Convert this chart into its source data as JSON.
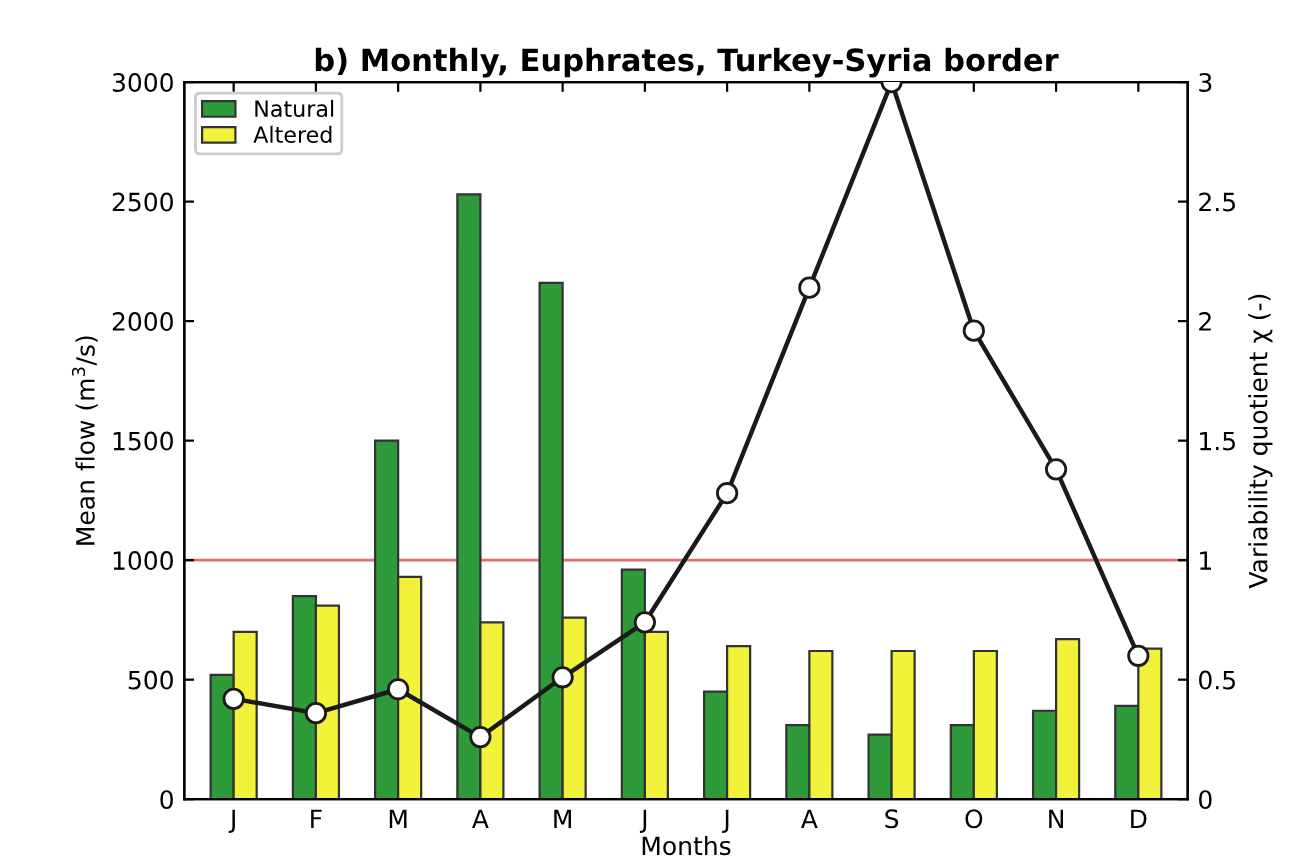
{
  "chart_data": {
    "type": "bar",
    "title": "b) Monthly, Euphrates, Turkey-Syria border",
    "xlabel": "Months",
    "ylabel": "Mean flow (m$^{3}$/s)",
    "y2label": "Variability quotient χ (-)",
    "categories": [
      "J",
      "F",
      "M",
      "A",
      "M",
      "J",
      "J",
      "A",
      "S",
      "O",
      "N",
      "D"
    ],
    "series": [
      {
        "name": "Natural",
        "color": "#2e9a3a",
        "values": [
          520,
          850,
          1500,
          2530,
          2160,
          960,
          450,
          310,
          270,
          310,
          370,
          390
        ]
      },
      {
        "name": "Altered",
        "color": "#f2f23a",
        "values": [
          700,
          810,
          930,
          740,
          760,
          700,
          640,
          620,
          620,
          620,
          670,
          630
        ]
      },
      {
        "type": "line",
        "axis": "y2",
        "color": "#1a1a1a",
        "marker": "circle",
        "values": [
          0.42,
          0.36,
          0.46,
          0.26,
          0.51,
          0.74,
          1.28,
          2.14,
          3.0,
          1.96,
          1.38,
          0.6
        ]
      }
    ],
    "ylim": [
      0,
      3000
    ],
    "yticks": [
      0,
      500,
      1000,
      1500,
      2000,
      2500,
      3000
    ],
    "y2lim": [
      0,
      3
    ],
    "y2ticks": [
      0,
      0.5,
      1,
      1.5,
      2,
      2.5,
      3
    ],
    "ref_lines": [
      {
        "axis": "y",
        "value": 1000,
        "color": "#e07070"
      }
    ],
    "legend": "top left",
    "grid": false
  }
}
